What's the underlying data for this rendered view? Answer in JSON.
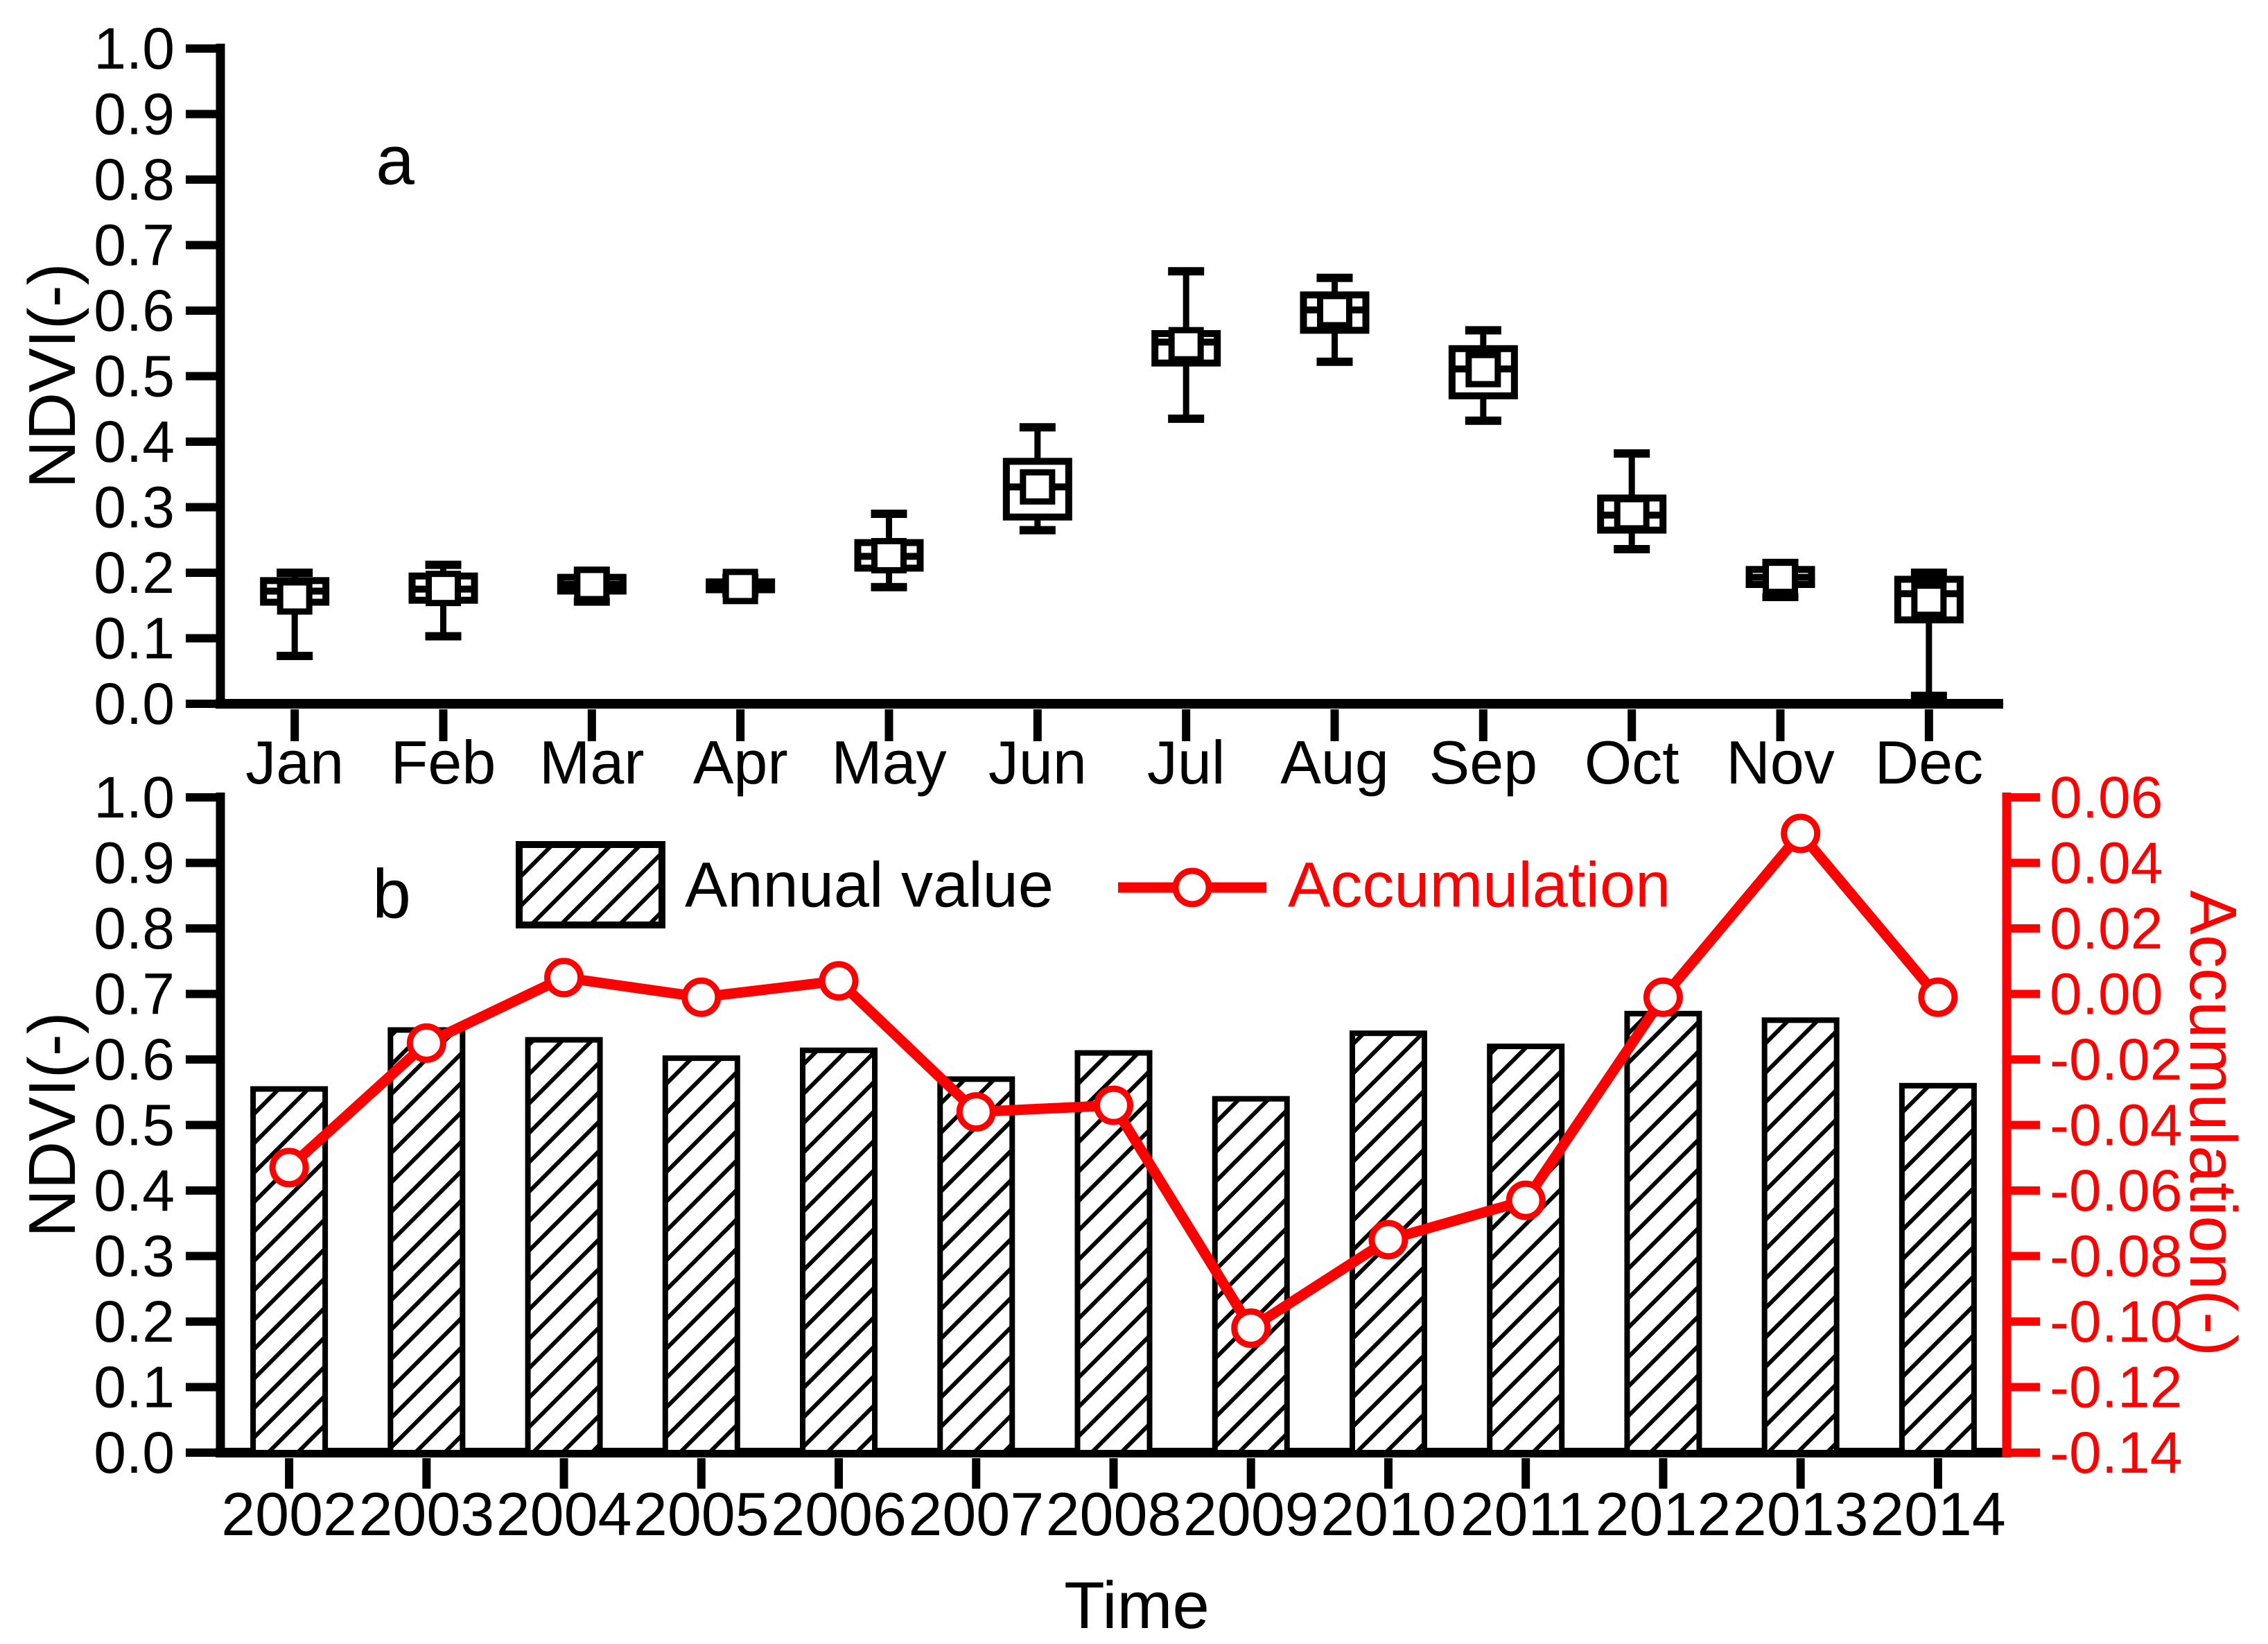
{
  "figure": {
    "labels": {
      "panel_a": "a",
      "panel_b": "b",
      "ndvi_axis": "NDVI(-)",
      "accumulation_axis": "Accumulation(-)",
      "time_axis": "Time",
      "legend_annual": "Annual value",
      "legend_accumulation": "Accumulation"
    },
    "colors": {
      "primary": "#000000",
      "accent": "#ff0000",
      "background": "#ffffff"
    }
  },
  "chart_data": [
    {
      "type": "box",
      "panel": "a",
      "title": "",
      "ylabel": "NDVI(-)",
      "ylim": [
        0.0,
        1.0
      ],
      "yticks": [
        0.0,
        0.1,
        0.2,
        0.3,
        0.4,
        0.5,
        0.6,
        0.7,
        0.8,
        0.9,
        1.0
      ],
      "ytick_labels": [
        "0.0",
        "0.1",
        "0.2",
        "0.3",
        "0.4",
        "0.5",
        "0.6",
        "0.7",
        "0.8",
        "0.9",
        "1.0"
      ],
      "categories": [
        "Jan",
        "Feb",
        "Mar",
        "Apr",
        "May",
        "Jun",
        "Jul",
        "Aug",
        "Sep",
        "Oct",
        "Nov",
        "Dec"
      ],
      "grid": false,
      "marker_style": "mean-square",
      "boxes": [
        {
          "month": "Jan",
          "whisker_low": 0.073,
          "q1": 0.155,
          "median": 0.172,
          "q3": 0.188,
          "whisker_high": 0.2,
          "mean": 0.163
        },
        {
          "month": "Feb",
          "whisker_low": 0.103,
          "q1": 0.158,
          "median": 0.175,
          "q3": 0.195,
          "whisker_high": 0.212,
          "mean": 0.176
        },
        {
          "month": "Mar",
          "whisker_low": 0.156,
          "q1": 0.172,
          "median": 0.182,
          "q3": 0.193,
          "whisker_high": 0.203,
          "mean": 0.182
        },
        {
          "month": "Apr",
          "whisker_low": 0.169,
          "q1": 0.174,
          "median": 0.179,
          "q3": 0.186,
          "whisker_high": 0.192,
          "mean": 0.179
        },
        {
          "month": "May",
          "whisker_low": 0.178,
          "q1": 0.207,
          "median": 0.225,
          "q3": 0.246,
          "whisker_high": 0.29,
          "mean": 0.226
        },
        {
          "month": "Jun",
          "whisker_low": 0.265,
          "q1": 0.285,
          "median": 0.331,
          "q3": 0.37,
          "whisker_high": 0.422,
          "mean": 0.331
        },
        {
          "month": "Jul",
          "whisker_low": 0.435,
          "q1": 0.52,
          "median": 0.552,
          "q3": 0.565,
          "whisker_high": 0.66,
          "mean": 0.548
        },
        {
          "month": "Aug",
          "whisker_low": 0.522,
          "q1": 0.57,
          "median": 0.601,
          "q3": 0.624,
          "whisker_high": 0.65,
          "mean": 0.6
        },
        {
          "month": "Sep",
          "whisker_low": 0.432,
          "q1": 0.47,
          "median": 0.511,
          "q3": 0.542,
          "whisker_high": 0.57,
          "mean": 0.51
        },
        {
          "month": "Oct",
          "whisker_low": 0.236,
          "q1": 0.265,
          "median": 0.288,
          "q3": 0.314,
          "whisker_high": 0.382,
          "mean": 0.29
        },
        {
          "month": "Nov",
          "whisker_low": 0.163,
          "q1": 0.182,
          "median": 0.193,
          "q3": 0.205,
          "whisker_high": 0.215,
          "mean": 0.193
        },
        {
          "month": "Dec",
          "whisker_low": 0.012,
          "q1": 0.128,
          "median": 0.168,
          "q3": 0.19,
          "whisker_high": 0.2,
          "mean": 0.158
        }
      ]
    },
    {
      "type": "bar+line",
      "panel": "b",
      "title": "",
      "xlabel": "Time",
      "ylabel_left": "NDVI(-)",
      "ylabel_right": "Accumulation(-)",
      "ylim_left": [
        0.0,
        1.0
      ],
      "ylim_right": [
        -0.14,
        0.06
      ],
      "yticks_left": [
        0.0,
        0.1,
        0.2,
        0.3,
        0.4,
        0.5,
        0.6,
        0.7,
        0.8,
        0.9,
        1.0
      ],
      "ytick_labels_left": [
        "0.0",
        "0.1",
        "0.2",
        "0.3",
        "0.4",
        "0.5",
        "0.6",
        "0.7",
        "0.8",
        "0.9",
        "1.0"
      ],
      "yticks_right": [
        0.06,
        0.04,
        0.02,
        0.0,
        -0.02,
        -0.04,
        -0.06,
        -0.08,
        -0.1,
        -0.12,
        -0.14
      ],
      "ytick_labels_right": [
        "0.06",
        "0.04",
        "0.02",
        "0.00",
        "-0.02",
        "-0.04",
        "-0.06",
        "-0.08",
        "-0.10",
        "-0.12",
        "-0.14"
      ],
      "categories": [
        "2002",
        "2003",
        "2004",
        "2005",
        "2006",
        "2007",
        "2008",
        "2009",
        "2010",
        "2011",
        "2012",
        "2013",
        "2014"
      ],
      "grid": false,
      "legend_position": "top",
      "series": [
        {
          "name": "Annual value",
          "type": "bar",
          "axis": "left",
          "fill": "hatch",
          "color": "#000000",
          "values": [
            0.555,
            0.645,
            0.63,
            0.602,
            0.614,
            0.57,
            0.61,
            0.54,
            0.64,
            0.62,
            0.67,
            0.66,
            0.56
          ]
        },
        {
          "name": "Accumulation",
          "type": "line",
          "axis": "right",
          "marker": "circle",
          "color": "#ff0000",
          "values": [
            -0.053,
            -0.015,
            0.005,
            -0.001,
            0.004,
            -0.036,
            -0.034,
            -0.102,
            -0.075,
            -0.063,
            -0.001,
            0.049,
            -0.001
          ]
        }
      ]
    }
  ]
}
